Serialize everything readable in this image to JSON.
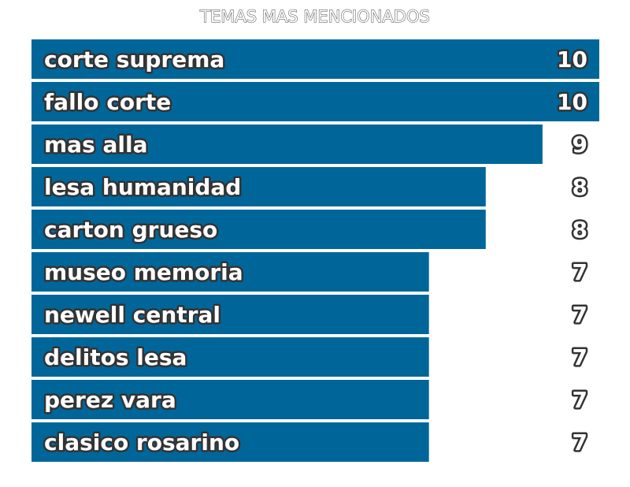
{
  "chart_data": {
    "type": "bar",
    "orientation": "horizontal",
    "title": "TEMAS MAS MENCIONADOS",
    "categories": [
      "corte suprema",
      "fallo corte",
      "mas alla",
      "lesa humanidad",
      "carton grueso",
      "museo memoria",
      "newell central",
      "delitos lesa",
      "perez vara",
      "clasico rosarino"
    ],
    "values": [
      10,
      10,
      9,
      8,
      8,
      7,
      7,
      7,
      7,
      7
    ],
    "xlim": [
      0,
      10
    ],
    "grid": false,
    "bar_color": "#006699"
  }
}
